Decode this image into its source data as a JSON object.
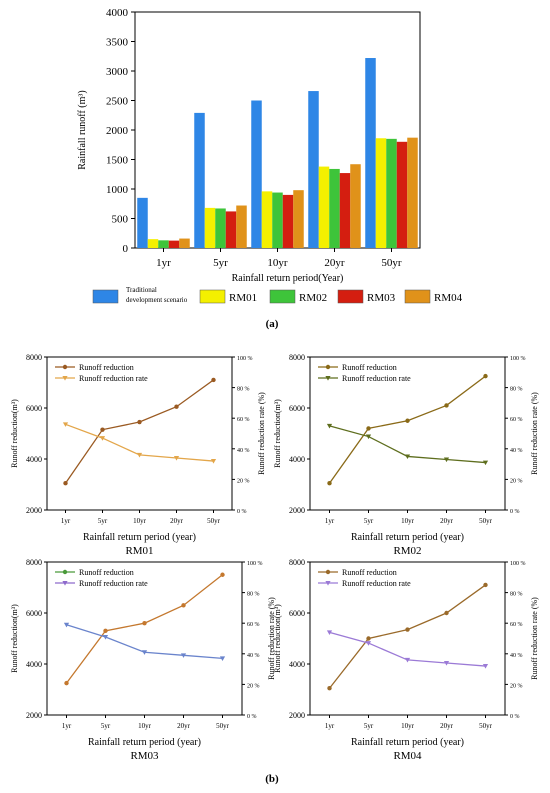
{
  "figure": {
    "label_a": "(a)",
    "label_b": "(b)"
  },
  "chart_data": [
    {
      "type": "bar",
      "categories": [
        "1yr",
        "5yr",
        "10yr",
        "20yr",
        "50yr"
      ],
      "xlabel": "Rainfall return period(Year)",
      "ylabel": "Rainfall runoff (m³)",
      "ylim": [
        0,
        4000
      ],
      "yticks": [
        0,
        500,
        1000,
        1500,
        2000,
        2500,
        3000,
        3500,
        4000
      ],
      "legend_placement": "bottom",
      "series": [
        {
          "name": "Traditional development scenario",
          "legend_lines": [
            "Traditional",
            "development scenario"
          ],
          "color": "#2e86e6",
          "values": [
            850,
            2290,
            2500,
            2660,
            3220
          ]
        },
        {
          "name": "RM01",
          "color": "#f4f000",
          "values": [
            150,
            680,
            960,
            1380,
            1860
          ]
        },
        {
          "name": "RM02",
          "color": "#3ec43a",
          "values": [
            130,
            670,
            940,
            1340,
            1850
          ]
        },
        {
          "name": "RM03",
          "color": "#d41e10",
          "values": [
            125,
            620,
            900,
            1270,
            1800
          ]
        },
        {
          "name": "RM04",
          "color": "#e0921a",
          "values": [
            160,
            720,
            980,
            1420,
            1870
          ]
        }
      ]
    },
    {
      "type": "line",
      "caption": "RM01",
      "categories": [
        "1yr",
        "5yr",
        "10yr",
        "20yr",
        "50yr"
      ],
      "xlabel": "Rainfall return period (year)",
      "ylabel": "Runoff reduction(m³)",
      "y2label": "Runoff reduction rate (%)",
      "ylim": [
        2000,
        8000
      ],
      "yticks": [
        2000,
        4000,
        6000,
        8000
      ],
      "y2lim": [
        0,
        100
      ],
      "y2ticks": [
        "0 %",
        "20 %",
        "40 %",
        "60 %",
        "80 %",
        "100 %"
      ],
      "legend_placement": "top-left",
      "series": [
        {
          "name": "Runoff reduction",
          "axis": "left",
          "marker": "circle",
          "color": "#9a5a22",
          "values": [
            3050,
            5150,
            5450,
            6050,
            7100
          ]
        },
        {
          "name": "Runoff reduction rate",
          "axis": "right",
          "marker": "triangle",
          "color": "#e3a64a",
          "values": [
            56,
            47,
            36,
            34,
            32
          ]
        }
      ]
    },
    {
      "type": "line",
      "caption": "RM02",
      "categories": [
        "1yr",
        "5yr",
        "10yr",
        "20yr",
        "50yr"
      ],
      "xlabel": "Rainfall return period (year)",
      "ylabel": "Runoff reduction(m³)",
      "y2label": "Runoff reduction rate (%)",
      "ylim": [
        2000,
        8000
      ],
      "yticks": [
        2000,
        4000,
        6000,
        8000
      ],
      "y2lim": [
        0,
        100
      ],
      "y2ticks": [
        "0 %",
        "20 %",
        "40 %",
        "60 %",
        "80 %",
        "100 %"
      ],
      "legend_placement": "top-left",
      "series": [
        {
          "name": "Runoff reduction",
          "axis": "left",
          "marker": "circle",
          "color": "#8a6a18",
          "values": [
            3050,
            5200,
            5500,
            6100,
            7250
          ]
        },
        {
          "name": "Runoff reduction rate",
          "axis": "right",
          "marker": "triangle",
          "color": "#5e6e1e",
          "values": [
            55,
            48,
            35,
            33,
            31
          ]
        }
      ]
    },
    {
      "type": "line",
      "caption": "RM03",
      "categories": [
        "1yr",
        "5yr",
        "10yr",
        "20yr",
        "50yr"
      ],
      "xlabel": "Rainfall return period (year)",
      "ylabel": "Runoff reduction(m³)",
      "y2label": "Runoff reduction rate (%)",
      "ylim": [
        2000,
        8000
      ],
      "yticks": [
        2000,
        4000,
        6000,
        8000
      ],
      "y2lim": [
        0,
        100
      ],
      "y2ticks": [
        "0 %",
        "20 %",
        "40 %",
        "60 %",
        "80 %",
        "100 %"
      ],
      "legend_placement": "top-left",
      "series": [
        {
          "name": "Runoff reduction",
          "axis": "left",
          "marker": "circle",
          "color": "#c4782e",
          "legend_color": "#4a9a3a",
          "values": [
            3250,
            5300,
            5600,
            6300,
            7500
          ]
        },
        {
          "name": "Runoff reduction rate",
          "axis": "right",
          "marker": "triangle",
          "color": "#6a84cc",
          "legend_color": "#8e6acc",
          "values": [
            59,
            51,
            41,
            39,
            37
          ]
        }
      ]
    },
    {
      "type": "line",
      "caption": "RM04",
      "categories": [
        "1yr",
        "5yr",
        "10yr",
        "20yr",
        "50yr"
      ],
      "xlabel": "Rainfall return period (year)",
      "ylabel": "Runoff reduction(m³)",
      "y2label": "Runoff reduction rate (%)",
      "ylim": [
        2000,
        8000
      ],
      "yticks": [
        2000,
        4000,
        6000,
        8000
      ],
      "y2lim": [
        0,
        100
      ],
      "y2ticks": [
        "0 %",
        "20 %",
        "40 %",
        "60 %",
        "80 %",
        "100 %"
      ],
      "legend_placement": "top-left",
      "series": [
        {
          "name": "Runoff reduction",
          "axis": "left",
          "marker": "circle",
          "color": "#9a6a2a",
          "values": [
            3050,
            5000,
            5350,
            6000,
            7100
          ]
        },
        {
          "name": "Runoff reduction rate",
          "axis": "right",
          "marker": "triangle",
          "color": "#9b7ad6",
          "values": [
            54,
            47,
            36,
            34,
            32
          ]
        }
      ]
    }
  ]
}
